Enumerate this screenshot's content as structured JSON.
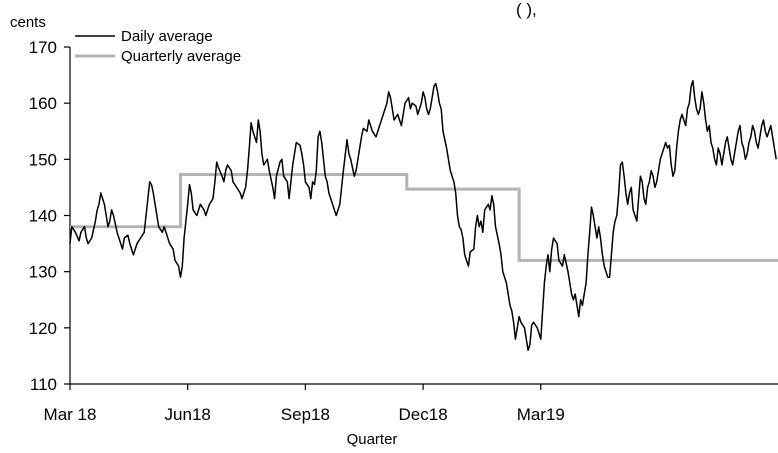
{
  "top_fragment": "(                          ),",
  "chart_data": {
    "type": "line",
    "unit_label": "cents",
    "xlabel": "Quarter",
    "ylabel": "",
    "ylim": [
      110,
      170
    ],
    "yticks": [
      110,
      120,
      130,
      140,
      150,
      160,
      170
    ],
    "xlim": [
      0,
      391
    ],
    "xtick_positions": [
      0,
      65,
      130,
      195,
      260
    ],
    "xtick_labels": [
      "Mar 18",
      "Jun18",
      "Sep18",
      "Dec18",
      "Mar19"
    ],
    "legend": [
      "Daily average",
      "Quarterly average"
    ],
    "legend_position": "top-left",
    "colors": {
      "daily": "#000000",
      "quarterly": "#b3b3b3"
    },
    "series": [
      {
        "name": "Daily average",
        "points": [
          [
            0,
            135
          ],
          [
            1,
            138
          ],
          [
            3,
            137
          ],
          [
            5,
            135.5
          ],
          [
            6,
            137
          ],
          [
            8,
            138
          ],
          [
            9,
            136
          ],
          [
            10,
            135
          ],
          [
            12,
            136
          ],
          [
            14,
            139
          ],
          [
            15,
            141
          ],
          [
            16,
            142
          ],
          [
            17,
            144
          ],
          [
            19,
            142
          ],
          [
            20,
            140
          ],
          [
            21,
            138
          ],
          [
            22,
            139
          ],
          [
            23,
            141
          ],
          [
            24,
            140
          ],
          [
            26,
            137
          ],
          [
            28,
            135
          ],
          [
            29,
            134
          ],
          [
            30,
            136
          ],
          [
            32,
            136.5
          ],
          [
            33,
            135
          ],
          [
            35,
            133
          ],
          [
            37,
            135
          ],
          [
            39,
            136
          ],
          [
            41,
            137
          ],
          [
            43,
            143
          ],
          [
            44,
            146
          ],
          [
            45,
            145.5
          ],
          [
            46,
            144
          ],
          [
            47,
            142
          ],
          [
            48,
            140
          ],
          [
            49,
            138
          ],
          [
            51,
            137
          ],
          [
            52,
            138
          ],
          [
            53,
            137
          ],
          [
            55,
            135
          ],
          [
            57,
            134
          ],
          [
            58,
            132
          ],
          [
            60,
            131
          ],
          [
            61,
            129
          ],
          [
            62,
            131
          ],
          [
            63,
            136
          ],
          [
            65,
            142
          ],
          [
            66,
            145.5
          ],
          [
            67,
            144
          ],
          [
            68,
            141
          ],
          [
            70,
            140
          ],
          [
            72,
            142
          ],
          [
            74,
            141
          ],
          [
            75,
            140
          ],
          [
            77,
            142
          ],
          [
            79,
            143
          ],
          [
            80,
            146
          ],
          [
            81,
            149.5
          ],
          [
            82,
            148.5
          ],
          [
            84,
            147
          ],
          [
            85,
            146
          ],
          [
            86,
            148
          ],
          [
            87,
            149
          ],
          [
            89,
            148
          ],
          [
            90,
            146
          ],
          [
            92,
            145
          ],
          [
            94,
            144
          ],
          [
            95,
            143
          ],
          [
            97,
            145
          ],
          [
            98,
            148
          ],
          [
            99,
            152
          ],
          [
            100,
            156.5
          ],
          [
            101,
            155
          ],
          [
            103,
            153
          ],
          [
            104,
            157
          ],
          [
            105,
            155
          ],
          [
            106,
            151
          ],
          [
            107,
            149
          ],
          [
            109,
            150
          ],
          [
            110,
            148
          ],
          [
            112,
            145
          ],
          [
            113,
            143
          ],
          [
            114,
            147
          ],
          [
            116,
            149.5
          ],
          [
            117,
            150
          ],
          [
            118,
            147
          ],
          [
            120,
            146
          ],
          [
            121,
            143
          ],
          [
            123,
            149
          ],
          [
            125,
            153
          ],
          [
            127,
            152.5
          ],
          [
            128,
            151
          ],
          [
            129,
            149
          ],
          [
            130,
            146
          ],
          [
            132,
            145
          ],
          [
            133,
            143
          ],
          [
            134,
            146
          ],
          [
            135,
            145.5
          ],
          [
            136,
            148
          ],
          [
            137,
            154
          ],
          [
            138,
            155
          ],
          [
            139,
            153
          ],
          [
            140,
            150
          ],
          [
            141,
            147
          ],
          [
            142,
            146
          ],
          [
            143,
            144
          ],
          [
            145,
            142
          ],
          [
            147,
            140
          ],
          [
            149,
            142
          ],
          [
            150,
            145
          ],
          [
            151,
            148
          ],
          [
            153,
            153.5
          ],
          [
            154,
            151
          ],
          [
            155,
            150
          ],
          [
            157,
            147
          ],
          [
            158,
            148
          ],
          [
            160,
            152
          ],
          [
            161,
            154
          ],
          [
            162,
            155.5
          ],
          [
            164,
            155
          ],
          [
            165,
            157
          ],
          [
            167,
            155
          ],
          [
            169,
            154
          ],
          [
            171,
            156
          ],
          [
            173,
            158
          ],
          [
            175,
            160
          ],
          [
            176,
            162
          ],
          [
            177,
            161
          ],
          [
            178,
            159
          ],
          [
            179,
            157
          ],
          [
            181,
            158
          ],
          [
            183,
            156
          ],
          [
            184,
            158
          ],
          [
            185,
            160
          ],
          [
            187,
            161
          ],
          [
            188,
            159
          ],
          [
            189,
            160
          ],
          [
            191,
            159.5
          ],
          [
            192,
            158
          ],
          [
            194,
            160
          ],
          [
            195,
            162
          ],
          [
            196,
            161
          ],
          [
            197,
            159
          ],
          [
            198,
            158
          ],
          [
            199,
            159
          ],
          [
            201,
            163
          ],
          [
            202,
            163.5
          ],
          [
            203,
            162
          ],
          [
            204,
            160
          ],
          [
            205,
            159
          ],
          [
            206,
            155
          ],
          [
            208,
            152
          ],
          [
            210,
            148
          ],
          [
            212,
            146
          ],
          [
            213,
            144
          ],
          [
            214,
            140
          ],
          [
            215,
            138
          ],
          [
            216,
            137.5
          ],
          [
            217,
            136
          ],
          [
            218,
            133
          ],
          [
            220,
            131
          ],
          [
            221,
            133.5
          ],
          [
            223,
            134
          ],
          [
            224,
            138
          ],
          [
            225,
            140
          ],
          [
            226,
            138
          ],
          [
            227,
            139
          ],
          [
            228,
            137
          ],
          [
            229,
            141
          ],
          [
            231,
            142
          ],
          [
            232,
            141
          ],
          [
            233,
            143.5
          ],
          [
            234,
            142
          ],
          [
            235,
            138
          ],
          [
            237,
            135
          ],
          [
            238,
            133
          ],
          [
            239,
            130
          ],
          [
            241,
            128
          ],
          [
            242,
            126
          ],
          [
            243,
            124
          ],
          [
            244,
            123
          ],
          [
            245,
            121
          ],
          [
            246,
            118
          ],
          [
            247,
            120
          ],
          [
            248,
            122
          ],
          [
            249,
            121
          ],
          [
            251,
            120
          ],
          [
            252,
            118
          ],
          [
            253,
            116
          ],
          [
            254,
            117
          ],
          [
            255,
            120.5
          ],
          [
            256,
            121
          ],
          [
            258,
            120
          ],
          [
            259,
            119
          ],
          [
            260,
            118
          ],
          [
            261,
            123
          ],
          [
            262,
            128
          ],
          [
            263,
            131
          ],
          [
            264,
            133
          ],
          [
            265,
            130
          ],
          [
            266,
            134
          ],
          [
            267,
            136
          ],
          [
            269,
            135
          ],
          [
            270,
            132
          ],
          [
            272,
            131
          ],
          [
            273,
            133
          ],
          [
            275,
            130
          ],
          [
            276,
            128
          ],
          [
            277,
            126
          ],
          [
            278,
            125
          ],
          [
            279,
            126
          ],
          [
            280,
            124
          ],
          [
            281,
            122
          ],
          [
            282,
            125
          ],
          [
            283,
            124
          ],
          [
            285,
            128
          ],
          [
            286,
            133
          ],
          [
            287,
            137
          ],
          [
            288,
            141.5
          ],
          [
            289,
            140
          ],
          [
            290,
            138
          ],
          [
            291,
            136
          ],
          [
            292,
            138
          ],
          [
            293,
            136
          ],
          [
            294,
            133
          ],
          [
            295,
            131
          ],
          [
            296,
            130
          ],
          [
            297,
            129
          ],
          [
            298,
            129
          ],
          [
            299,
            133
          ],
          [
            300,
            137
          ],
          [
            301,
            139
          ],
          [
            302,
            140
          ],
          [
            303,
            144
          ],
          [
            304,
            149
          ],
          [
            305,
            149.5
          ],
          [
            306,
            147
          ],
          [
            307,
            144
          ],
          [
            308,
            142
          ],
          [
            309,
            144
          ],
          [
            310,
            145
          ],
          [
            311,
            141
          ],
          [
            312,
            140
          ],
          [
            313,
            139
          ],
          [
            314,
            143
          ],
          [
            315,
            147
          ],
          [
            316,
            146
          ],
          [
            317,
            143
          ],
          [
            318,
            142
          ],
          [
            319,
            145
          ],
          [
            320,
            146
          ],
          [
            321,
            148
          ],
          [
            322,
            147
          ],
          [
            323,
            145
          ],
          [
            324,
            146
          ],
          [
            325,
            148
          ],
          [
            326,
            150
          ],
          [
            327,
            151
          ],
          [
            328,
            152
          ],
          [
            329,
            153
          ],
          [
            330,
            152
          ],
          [
            331,
            152.5
          ],
          [
            332,
            149
          ],
          [
            333,
            147
          ],
          [
            334,
            148
          ],
          [
            335,
            152
          ],
          [
            336,
            155
          ],
          [
            337,
            157
          ],
          [
            338,
            158
          ],
          [
            339,
            157
          ],
          [
            340,
            156
          ],
          [
            341,
            159
          ],
          [
            342,
            160
          ],
          [
            343,
            163
          ],
          [
            344,
            164
          ],
          [
            345,
            161
          ],
          [
            346,
            159
          ],
          [
            347,
            158
          ],
          [
            348,
            159
          ],
          [
            349,
            162
          ],
          [
            350,
            160
          ],
          [
            351,
            157
          ],
          [
            352,
            155
          ],
          [
            353,
            156
          ],
          [
            354,
            153
          ],
          [
            355,
            152
          ],
          [
            356,
            150
          ],
          [
            357,
            149
          ],
          [
            358,
            152
          ],
          [
            359,
            151
          ],
          [
            360,
            149
          ],
          [
            361,
            151
          ],
          [
            362,
            153
          ],
          [
            363,
            154
          ],
          [
            364,
            152
          ],
          [
            365,
            150
          ],
          [
            366,
            149
          ],
          [
            367,
            151
          ],
          [
            368,
            153
          ],
          [
            369,
            155
          ],
          [
            370,
            156
          ],
          [
            371,
            153
          ],
          [
            372,
            152
          ],
          [
            373,
            150
          ],
          [
            374,
            151
          ],
          [
            375,
            153
          ],
          [
            376,
            154
          ],
          [
            377,
            156
          ],
          [
            378,
            155
          ],
          [
            379,
            153
          ],
          [
            380,
            152
          ],
          [
            381,
            154
          ],
          [
            382,
            156
          ],
          [
            383,
            157
          ],
          [
            384,
            155
          ],
          [
            385,
            154
          ],
          [
            386,
            155
          ],
          [
            387,
            156
          ],
          [
            388,
            154
          ],
          [
            389,
            152
          ],
          [
            390,
            150
          ]
        ]
      },
      {
        "name": "Quarterly average",
        "steps": [
          {
            "x_start": 0,
            "x_end": 61,
            "value": 138
          },
          {
            "x_start": 61,
            "x_end": 186,
            "value": 147.3
          },
          {
            "x_start": 186,
            "x_end": 248,
            "value": 144.7
          },
          {
            "x_start": 248,
            "x_end": 391,
            "value": 132
          }
        ]
      }
    ]
  }
}
